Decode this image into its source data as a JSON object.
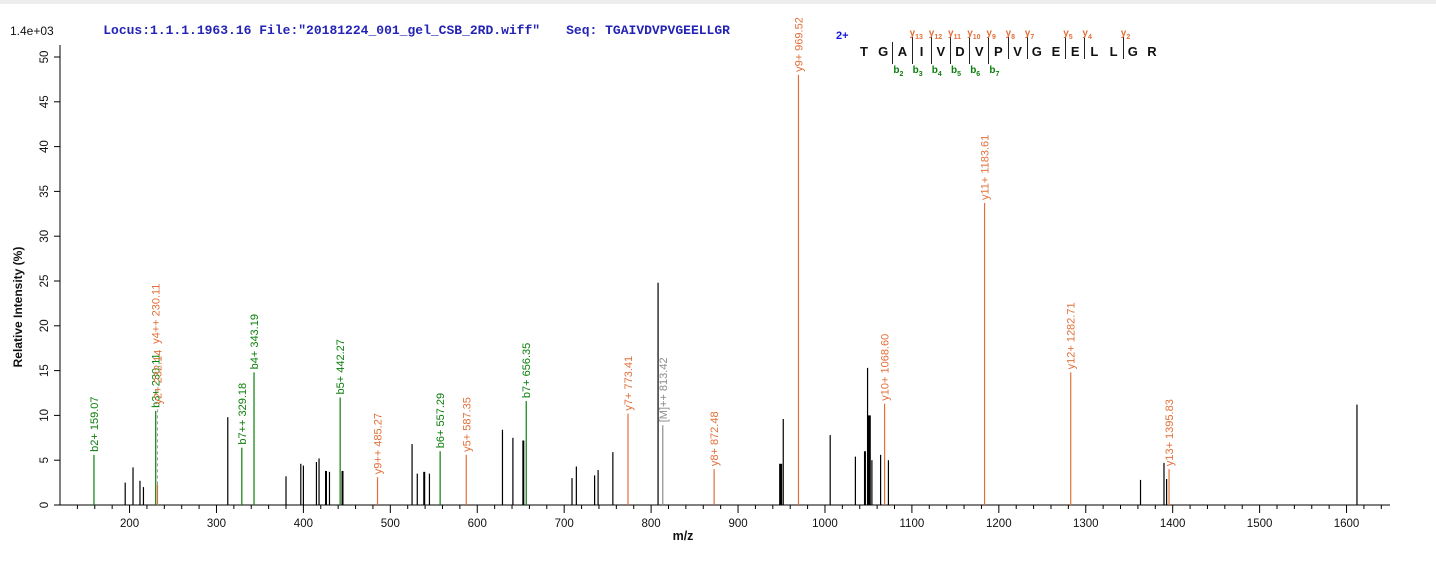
{
  "header": {
    "locus_file": "Locus:1.1.1.1963.16 File:\"20181224_001_gel_CSB_2RD.wiff\"",
    "seq_label": "Seq:",
    "seq_value": "TGAIVDVPVGEELLGR"
  },
  "colors": {
    "header_text": "#2323b6",
    "charge_text": "#1515e0",
    "y_ion": "#e2703a",
    "b_ion": "#0b7f0b",
    "precursor": "#8c8c8c",
    "peak": "#000000",
    "axis": "#000000",
    "leader": "#9a9a9a"
  },
  "peptide_annotation": {
    "charge": "2+",
    "residues": [
      "T",
      "G",
      "A",
      "I",
      "V",
      "D",
      "V",
      "P",
      "V",
      "G",
      "E",
      "E",
      "L",
      "L",
      "G",
      "R"
    ],
    "y_ions": [
      {
        "name": "y",
        "sub": "13",
        "after": 3
      },
      {
        "name": "y",
        "sub": "12",
        "after": 4
      },
      {
        "name": "y",
        "sub": "11",
        "after": 5
      },
      {
        "name": "y",
        "sub": "10",
        "after": 6
      },
      {
        "name": "y",
        "sub": "9",
        "after": 7
      },
      {
        "name": "y",
        "sub": "8",
        "after": 8
      },
      {
        "name": "y",
        "sub": "7",
        "after": 9
      },
      {
        "name": "y",
        "sub": "5",
        "after": 11
      },
      {
        "name": "y",
        "sub": "4",
        "after": 12
      },
      {
        "name": "y",
        "sub": "2",
        "after": 14
      }
    ],
    "b_ions": [
      {
        "name": "b",
        "sub": "2",
        "after": 2
      },
      {
        "name": "b",
        "sub": "3",
        "after": 3
      },
      {
        "name": "b",
        "sub": "4",
        "after": 4
      },
      {
        "name": "b",
        "sub": "5",
        "after": 5
      },
      {
        "name": "b",
        "sub": "6",
        "after": 6
      },
      {
        "name": "b",
        "sub": "7",
        "after": 7
      }
    ]
  },
  "chart_data": {
    "type": "bar",
    "subtype": "tandem-ms-peak-spectrum",
    "title": "",
    "xlabel": "m/z",
    "ylabel": "Relative  Intensity (%)",
    "intensity_scale_label": "1.4e+03",
    "xlim": [
      120,
      1650
    ],
    "ylim": [
      0,
      50
    ],
    "x_major_ticks": [
      200,
      300,
      400,
      500,
      600,
      700,
      800,
      900,
      1000,
      1100,
      1200,
      1300,
      1400,
      1500,
      1600
    ],
    "x_minor_step": 20,
    "y_ticks": [
      0,
      5,
      10,
      15,
      20,
      25,
      30,
      35,
      40,
      45,
      50
    ],
    "grid": false,
    "peaks": [
      {
        "mz": 159.07,
        "intensity": 5.6,
        "series": "b",
        "label": "b2+ 159.07"
      },
      {
        "mz": 195,
        "intensity": 2.5,
        "series": "peak"
      },
      {
        "mz": 204,
        "intensity": 4.2,
        "series": "peak"
      },
      {
        "mz": 212,
        "intensity": 2.7,
        "series": "peak"
      },
      {
        "mz": 216,
        "intensity": 2.0,
        "series": "peak"
      },
      {
        "mz": 230.11,
        "intensity": 10.5,
        "series": "b",
        "label": "b3+ 230.11"
      },
      {
        "mz": 230.11,
        "intensity": 10.5,
        "series": "y",
        "label": "y4++ 230.11",
        "no_line": true,
        "label_offset": 64
      },
      {
        "mz": 232.14,
        "intensity": 2.3,
        "series": "y",
        "label": "y2+ 232.14",
        "leader_to": 10.9
      },
      {
        "mz": 313,
        "intensity": 9.8,
        "series": "peak"
      },
      {
        "mz": 329.18,
        "intensity": 6.4,
        "series": "b",
        "label": "b7++ 329.18"
      },
      {
        "mz": 343.19,
        "intensity": 14.8,
        "series": "b",
        "label": "b4+ 343.19"
      },
      {
        "mz": 380,
        "intensity": 3.2,
        "series": "peak"
      },
      {
        "mz": 397,
        "intensity": 4.6,
        "series": "peak"
      },
      {
        "mz": 400,
        "intensity": 4.4,
        "series": "peak"
      },
      {
        "mz": 415,
        "intensity": 4.8,
        "series": "peak"
      },
      {
        "mz": 418,
        "intensity": 5.2,
        "series": "peak"
      },
      {
        "mz": 426,
        "intensity": 3.8,
        "series": "peak",
        "width": 2
      },
      {
        "mz": 430,
        "intensity": 3.7,
        "series": "peak"
      },
      {
        "mz": 442.27,
        "intensity": 12.0,
        "series": "b",
        "label": "b5+ 442.27"
      },
      {
        "mz": 445,
        "intensity": 3.8,
        "series": "peak",
        "width": 2
      },
      {
        "mz": 485.27,
        "intensity": 3.1,
        "series": "y",
        "label": "y9++ 485.27"
      },
      {
        "mz": 525,
        "intensity": 6.8,
        "series": "peak"
      },
      {
        "mz": 531,
        "intensity": 3.5,
        "series": "peak"
      },
      {
        "mz": 539,
        "intensity": 3.7,
        "series": "peak",
        "width": 2
      },
      {
        "mz": 545,
        "intensity": 3.5,
        "series": "peak"
      },
      {
        "mz": 557.29,
        "intensity": 6.0,
        "series": "b",
        "label": "b6+ 557.29"
      },
      {
        "mz": 587.35,
        "intensity": 5.6,
        "series": "y",
        "label": "y5+ 587.35"
      },
      {
        "mz": 629,
        "intensity": 8.4,
        "series": "peak"
      },
      {
        "mz": 641,
        "intensity": 7.5,
        "series": "peak"
      },
      {
        "mz": 653,
        "intensity": 7.2,
        "series": "peak",
        "width": 2
      },
      {
        "mz": 656.35,
        "intensity": 11.6,
        "series": "b",
        "label": "b7+ 656.35"
      },
      {
        "mz": 709,
        "intensity": 3.0,
        "series": "peak"
      },
      {
        "mz": 714,
        "intensity": 4.3,
        "series": "peak"
      },
      {
        "mz": 735,
        "intensity": 3.3,
        "series": "peak"
      },
      {
        "mz": 739,
        "intensity": 3.9,
        "series": "peak"
      },
      {
        "mz": 756,
        "intensity": 5.9,
        "series": "peak"
      },
      {
        "mz": 773.41,
        "intensity": 10.2,
        "series": "y",
        "label": "y7+ 773.41"
      },
      {
        "mz": 808,
        "intensity": 24.8,
        "series": "peak"
      },
      {
        "mz": 813.42,
        "intensity": 8.9,
        "series": "precursor",
        "label": "[M]++ 813.42"
      },
      {
        "mz": 872.48,
        "intensity": 4.0,
        "series": "y",
        "label": "y8+ 872.48"
      },
      {
        "mz": 949,
        "intensity": 4.6,
        "series": "peak",
        "width": 3
      },
      {
        "mz": 952,
        "intensity": 9.6,
        "series": "peak"
      },
      {
        "mz": 969.52,
        "intensity": 48.0,
        "series": "y",
        "label": "y9+ 969.52"
      },
      {
        "mz": 1006,
        "intensity": 7.8,
        "series": "peak"
      },
      {
        "mz": 1035,
        "intensity": 5.4,
        "series": "peak"
      },
      {
        "mz": 1046,
        "intensity": 6.0,
        "series": "peak",
        "width": 2
      },
      {
        "mz": 1049,
        "intensity": 15.3,
        "series": "peak"
      },
      {
        "mz": 1051,
        "intensity": 10.0,
        "series": "peak",
        "width": 3
      },
      {
        "mz": 1054,
        "intensity": 5.0,
        "series": "peak"
      },
      {
        "mz": 1064,
        "intensity": 5.6,
        "series": "peak"
      },
      {
        "mz": 1068.6,
        "intensity": 11.3,
        "series": "y",
        "label": "y10+ 1068.60"
      },
      {
        "mz": 1073,
        "intensity": 5.0,
        "series": "peak"
      },
      {
        "mz": 1183.61,
        "intensity": 33.7,
        "series": "y",
        "label": "y11+ 1183.61"
      },
      {
        "mz": 1282.71,
        "intensity": 14.8,
        "series": "y",
        "label": "y12+ 1282.71"
      },
      {
        "mz": 1363,
        "intensity": 2.8,
        "series": "peak"
      },
      {
        "mz": 1390,
        "intensity": 4.7,
        "series": "peak"
      },
      {
        "mz": 1393,
        "intensity": 2.9,
        "series": "peak"
      },
      {
        "mz": 1395.83,
        "intensity": 4.0,
        "series": "y",
        "label": "y13+ 1395.83"
      },
      {
        "mz": 1612,
        "intensity": 11.2,
        "series": "peak"
      }
    ]
  }
}
